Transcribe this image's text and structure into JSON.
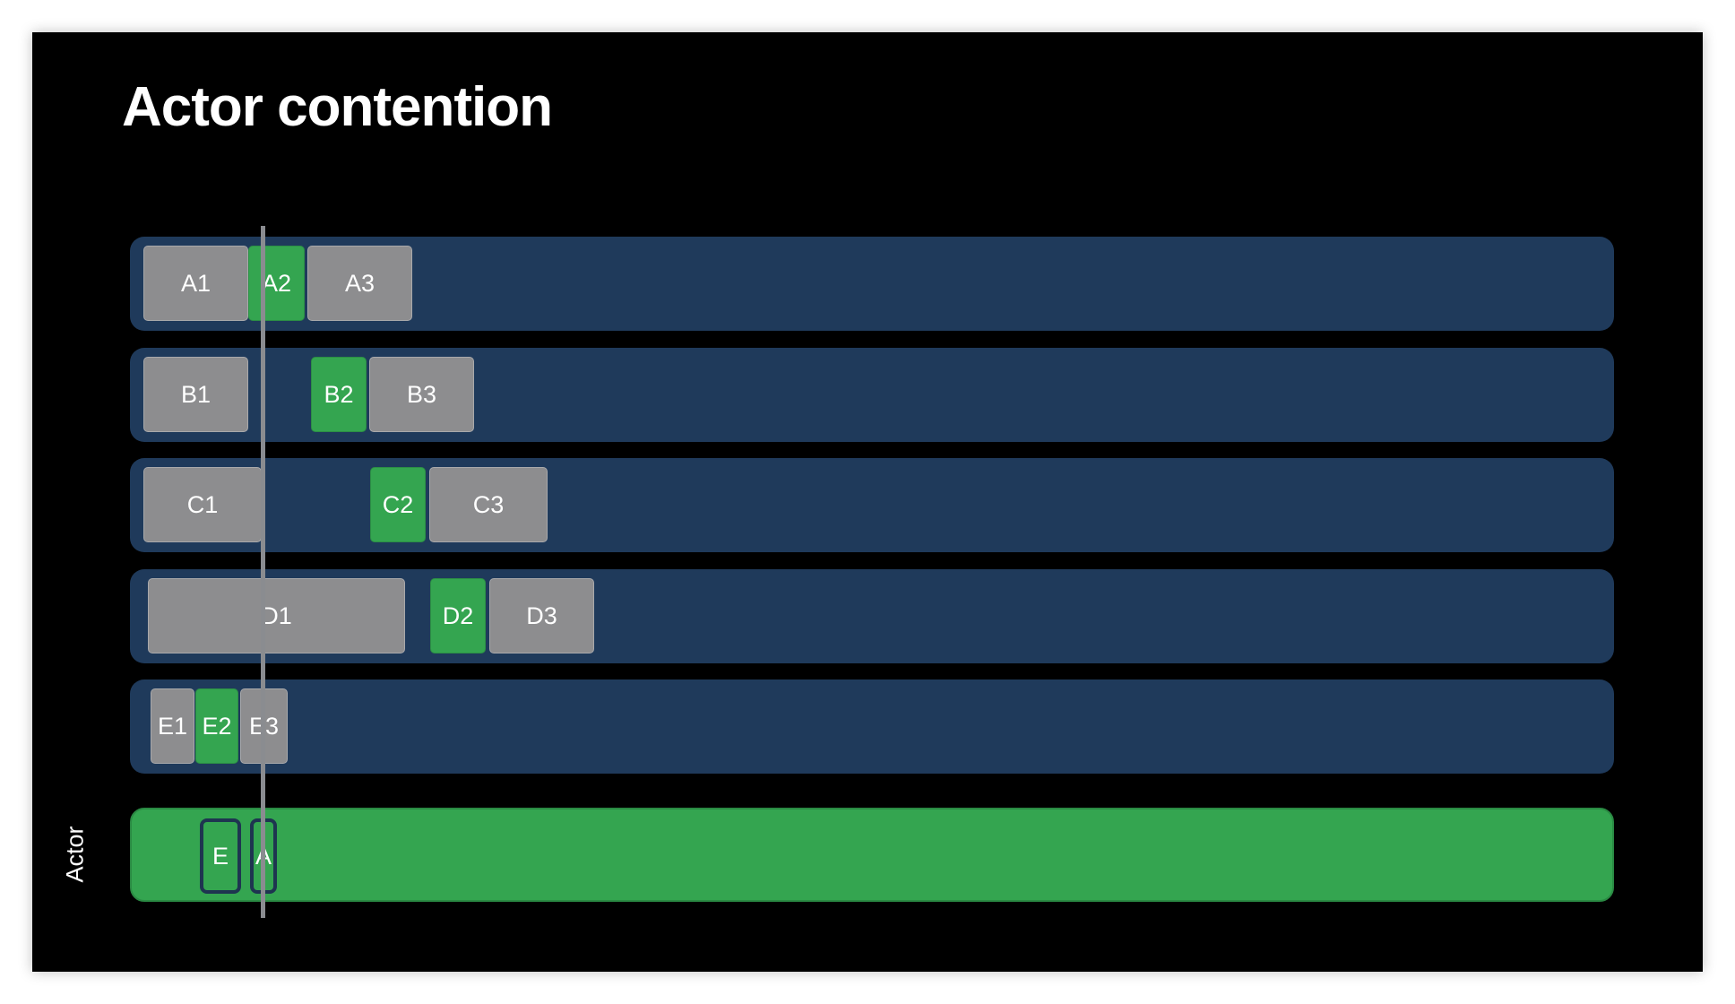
{
  "title": "Actor contention",
  "actor_label": "Actor",
  "colors": {
    "background": "#000000",
    "lane": "#1f3a5b",
    "task_gray": "#8d8d8f",
    "task_green": "#34a550"
  },
  "lanes": [
    {
      "tasks": [
        {
          "label": "A1",
          "state": "gray"
        },
        {
          "label": "A2",
          "state": "green"
        },
        {
          "label": "A3",
          "state": "gray"
        }
      ]
    },
    {
      "tasks": [
        {
          "label": "B1",
          "state": "gray"
        },
        {
          "label": "B2",
          "state": "green"
        },
        {
          "label": "B3",
          "state": "gray"
        }
      ]
    },
    {
      "tasks": [
        {
          "label": "C1",
          "state": "gray"
        },
        {
          "label": "C2",
          "state": "green"
        },
        {
          "label": "C3",
          "state": "gray"
        }
      ]
    },
    {
      "tasks": [
        {
          "label": "D1",
          "state": "gray"
        },
        {
          "label": "D2",
          "state": "green"
        },
        {
          "label": "D3",
          "state": "gray"
        }
      ]
    },
    {
      "tasks": [
        {
          "label": "E1",
          "state": "gray"
        },
        {
          "label": "E2",
          "state": "green"
        },
        {
          "label": "E3",
          "state": "gray"
        }
      ]
    }
  ],
  "actor_slots": [
    {
      "label": "E"
    },
    {
      "label": "A"
    }
  ]
}
